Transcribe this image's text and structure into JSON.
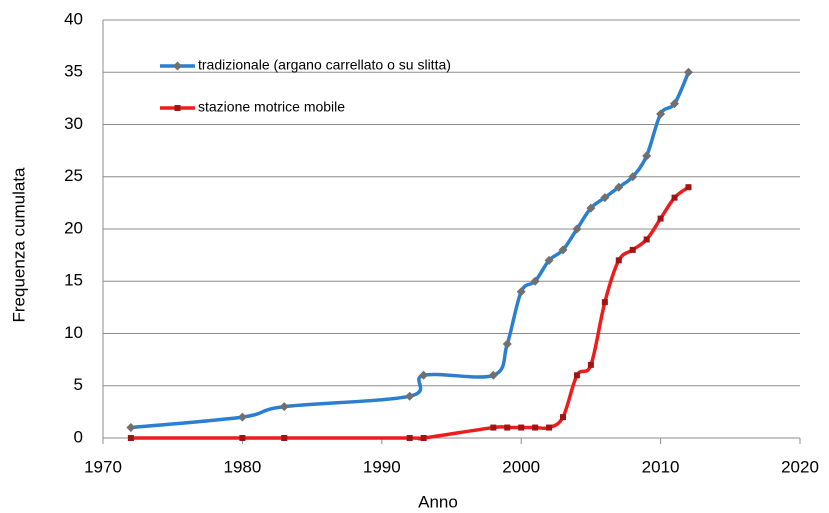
{
  "chart_data": {
    "type": "line",
    "x_label": "Anno",
    "y_label": "Frequenza cumulata",
    "x": [
      1972,
      1980,
      1983,
      1992,
      1993,
      1998,
      1999,
      2000,
      2001,
      2002,
      2003,
      2004,
      2005,
      2006,
      2007,
      2008,
      2009,
      2010,
      2011,
      2012
    ],
    "series": [
      {
        "name": "tradizionale (argano carrellato o su slitta)",
        "color": "#2a7fd0",
        "marker_color": "#707070",
        "values": [
          1,
          2,
          3,
          4,
          6,
          6,
          9,
          14,
          15,
          17,
          18,
          20,
          22,
          23,
          24,
          25,
          27,
          31,
          32,
          35
        ]
      },
      {
        "name": "stazione motrice mobile",
        "color": "#ee1c1c",
        "marker_color": "#a01414",
        "values": [
          0,
          0,
          0,
          0,
          0,
          1,
          1,
          1,
          1,
          1,
          2,
          6,
          7,
          13,
          17,
          18,
          19,
          21,
          23,
          24
        ]
      }
    ],
    "xlim": [
      1970,
      2020
    ],
    "xticks": [
      1970,
      1980,
      1990,
      2000,
      2010,
      2020
    ],
    "ylim": [
      0,
      40
    ],
    "yticks": [
      0,
      5,
      10,
      15,
      20,
      25,
      30,
      35,
      40
    ],
    "grid": true,
    "smooth": true,
    "legend": "upper-left"
  }
}
